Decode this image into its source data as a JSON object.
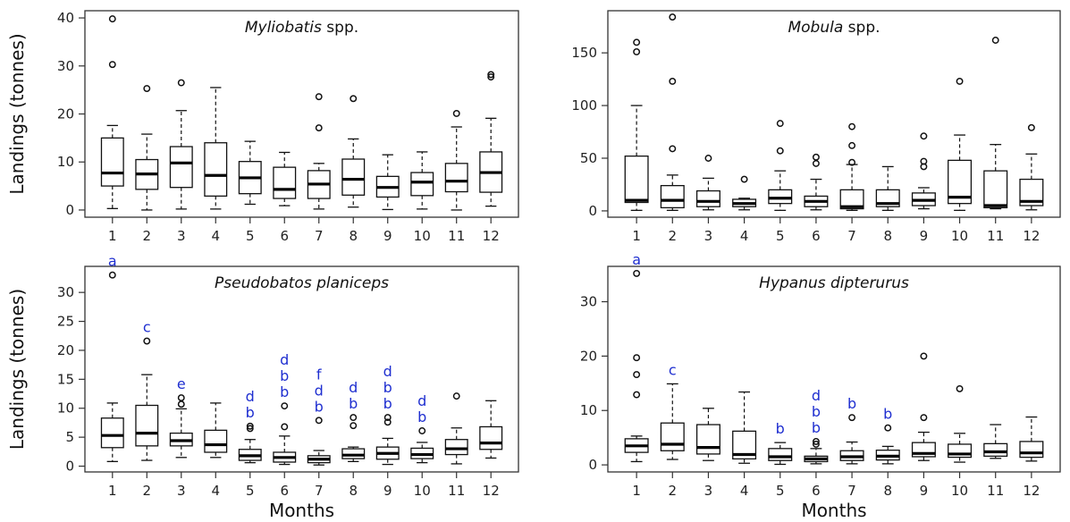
{
  "chart_data": [
    {
      "type": "boxplot",
      "title_italic": "Myliobatis",
      "title_suffix": " spp.",
      "ylabel": "Landings (tonnes)",
      "xlabel": "",
      "ylim": [
        -1.5,
        41.5
      ],
      "yticks": [
        0,
        10,
        20,
        30,
        40
      ],
      "categories": [
        "1",
        "2",
        "3",
        "4",
        "5",
        "6",
        "7",
        "8",
        "9",
        "10",
        "11",
        "12"
      ],
      "boxes": [
        {
          "min": 0.3,
          "q1": 5.0,
          "median": 7.7,
          "q3": 15.0,
          "max": 17.6,
          "outliers": [
            30.3,
            39.8
          ]
        },
        {
          "min": 0.0,
          "q1": 4.3,
          "median": 7.5,
          "q3": 10.5,
          "max": 15.8,
          "outliers": [
            25.3
          ]
        },
        {
          "min": 0.2,
          "q1": 4.7,
          "median": 9.8,
          "q3": 13.2,
          "max": 20.7,
          "outliers": [
            26.5
          ]
        },
        {
          "min": 0.2,
          "q1": 2.9,
          "median": 7.2,
          "q3": 14.0,
          "max": 25.5,
          "outliers": []
        },
        {
          "min": 1.2,
          "q1": 3.4,
          "median": 6.7,
          "q3": 10.1,
          "max": 14.3,
          "outliers": []
        },
        {
          "min": 0.9,
          "q1": 2.4,
          "median": 4.3,
          "q3": 8.9,
          "max": 12.0,
          "outliers": []
        },
        {
          "min": 0.2,
          "q1": 2.4,
          "median": 5.4,
          "q3": 8.2,
          "max": 9.7,
          "outliers": [
            17.1,
            23.6
          ]
        },
        {
          "min": 0.6,
          "q1": 3.1,
          "median": 6.4,
          "q3": 10.6,
          "max": 14.8,
          "outliers": [
            23.2
          ]
        },
        {
          "min": 0.1,
          "q1": 2.7,
          "median": 4.7,
          "q3": 7.0,
          "max": 11.5,
          "outliers": []
        },
        {
          "min": 0.2,
          "q1": 3.0,
          "median": 5.8,
          "q3": 7.8,
          "max": 12.1,
          "outliers": []
        },
        {
          "min": 0.0,
          "q1": 3.8,
          "median": 6.0,
          "q3": 9.7,
          "max": 17.3,
          "outliers": [
            20.1
          ]
        },
        {
          "min": 0.8,
          "q1": 3.7,
          "median": 7.8,
          "q3": 12.1,
          "max": 19.1,
          "outliers": [
            27.7,
            28.2
          ]
        }
      ],
      "letters": []
    },
    {
      "type": "boxplot",
      "title_italic": "Mobula",
      "title_suffix": " spp.",
      "ylabel": "",
      "xlabel": "",
      "ylim": [
        -6,
        190
      ],
      "yticks": [
        0,
        50,
        100,
        150
      ],
      "categories": [
        "1",
        "2",
        "3",
        "4",
        "5",
        "6",
        "7",
        "8",
        "9",
        "10",
        "11",
        "12"
      ],
      "boxes": [
        {
          "min": 0.5,
          "q1": 8,
          "median": 10,
          "q3": 52,
          "max": 100,
          "outliers": [
            151,
            160
          ]
        },
        {
          "min": 0.5,
          "q1": 3,
          "median": 10,
          "q3": 24,
          "max": 34,
          "outliers": [
            59,
            123,
            184
          ]
        },
        {
          "min": 1,
          "q1": 4,
          "median": 9,
          "q3": 19,
          "max": 31,
          "outliers": [
            50
          ]
        },
        {
          "min": 1,
          "q1": 4,
          "median": 7,
          "q3": 11,
          "max": 12,
          "outliers": [
            30
          ]
        },
        {
          "min": 0.5,
          "q1": 7,
          "median": 12,
          "q3": 20,
          "max": 38,
          "outliers": [
            57,
            83
          ]
        },
        {
          "min": 1,
          "q1": 4,
          "median": 9,
          "q3": 14,
          "max": 30,
          "outliers": [
            45,
            51
          ]
        },
        {
          "min": 0.5,
          "q1": 2,
          "median": 4,
          "q3": 20,
          "max": 44,
          "outliers": [
            46,
            62,
            80
          ]
        },
        {
          "min": 0.5,
          "q1": 4,
          "median": 7,
          "q3": 20,
          "max": 42,
          "outliers": []
        },
        {
          "min": 2,
          "q1": 5,
          "median": 10,
          "q3": 17,
          "max": 22,
          "outliers": [
            42,
            47,
            71
          ]
        },
        {
          "min": 0.5,
          "q1": 7,
          "median": 13,
          "q3": 48,
          "max": 72,
          "outliers": [
            123
          ]
        },
        {
          "min": 2,
          "q1": 3,
          "median": 5,
          "q3": 38,
          "max": 63,
          "outliers": [
            162
          ]
        },
        {
          "min": 1,
          "q1": 5,
          "median": 9,
          "q3": 30,
          "max": 54,
          "outliers": [
            79
          ]
        }
      ],
      "letters": []
    },
    {
      "type": "boxplot",
      "title_italic": "Pseudobatos planiceps",
      "title_suffix": "",
      "ylabel": "Landings (tonnes)",
      "xlabel": "Months",
      "ylim": [
        -1,
        34.5
      ],
      "yticks": [
        0,
        5,
        10,
        15,
        20,
        25,
        30
      ],
      "categories": [
        "1",
        "2",
        "3",
        "4",
        "5",
        "6",
        "7",
        "8",
        "9",
        "10",
        "11",
        "12"
      ],
      "boxes": [
        {
          "min": 0.8,
          "q1": 3.2,
          "median": 5.3,
          "q3": 8.3,
          "max": 10.9,
          "outliers": [
            33.0
          ]
        },
        {
          "min": 1.0,
          "q1": 3.5,
          "median": 5.7,
          "q3": 10.5,
          "max": 15.8,
          "outliers": [
            21.6
          ]
        },
        {
          "min": 1.5,
          "q1": 3.5,
          "median": 4.4,
          "q3": 5.7,
          "max": 9.9,
          "outliers": [
            10.7,
            11.8
          ]
        },
        {
          "min": 1.5,
          "q1": 2.4,
          "median": 3.7,
          "q3": 6.2,
          "max": 10.9,
          "outliers": []
        },
        {
          "min": 0.6,
          "q1": 1.0,
          "median": 1.8,
          "q3": 2.9,
          "max": 4.6,
          "outliers": [
            6.5,
            6.9
          ]
        },
        {
          "min": 0.3,
          "q1": 0.7,
          "median": 1.5,
          "q3": 2.4,
          "max": 5.2,
          "outliers": [
            6.8,
            10.4
          ]
        },
        {
          "min": 0.2,
          "q1": 0.6,
          "median": 1.2,
          "q3": 1.8,
          "max": 2.7,
          "outliers": [
            7.9
          ]
        },
        {
          "min": 0.8,
          "q1": 1.3,
          "median": 1.9,
          "q3": 3.0,
          "max": 3.3,
          "outliers": [
            7.0,
            8.4
          ]
        },
        {
          "min": 0.3,
          "q1": 1.2,
          "median": 2.2,
          "q3": 3.3,
          "max": 4.8,
          "outliers": [
            7.6,
            8.4
          ]
        },
        {
          "min": 0.6,
          "q1": 1.3,
          "median": 2.0,
          "q3": 3.1,
          "max": 4.1,
          "outliers": [
            6.1
          ]
        },
        {
          "min": 0.4,
          "q1": 2.0,
          "median": 3.0,
          "q3": 4.6,
          "max": 6.6,
          "outliers": [
            12.1
          ]
        },
        {
          "min": 1.4,
          "q1": 2.9,
          "median": 4.0,
          "q3": 6.8,
          "max": 11.3,
          "outliers": []
        }
      ],
      "letters": [
        {
          "month": 1,
          "text": [
            "a"
          ]
        },
        {
          "month": 2,
          "text": [
            "c"
          ]
        },
        {
          "month": 3,
          "text": [
            "e"
          ]
        },
        {
          "month": 5,
          "text": [
            "d",
            "b"
          ]
        },
        {
          "month": 6,
          "text": [
            "d",
            "b",
            "b"
          ]
        },
        {
          "month": 7,
          "text": [
            "f",
            "d",
            "b"
          ]
        },
        {
          "month": 8,
          "text": [
            "d",
            "b"
          ]
        },
        {
          "month": 9,
          "text": [
            "d",
            "b",
            "b"
          ]
        },
        {
          "month": 10,
          "text": [
            "d",
            "b"
          ]
        }
      ]
    },
    {
      "type": "boxplot",
      "title_italic": "Hypanus dipterurus",
      "title_suffix": "",
      "ylabel": "",
      "xlabel": "Months",
      "ylim": [
        -1.3,
        36.5
      ],
      "yticks": [
        0,
        10,
        20,
        30
      ],
      "categories": [
        "1",
        "2",
        "3",
        "4",
        "5",
        "6",
        "7",
        "8",
        "9",
        "10",
        "11",
        "12"
      ],
      "boxes": [
        {
          "min": 0.6,
          "q1": 2.3,
          "median": 3.5,
          "q3": 4.8,
          "max": 5.3,
          "outliers": [
            12.9,
            16.6,
            19.7,
            35.2
          ]
        },
        {
          "min": 1.0,
          "q1": 2.6,
          "median": 3.8,
          "q3": 7.7,
          "max": 14.9,
          "outliers": []
        },
        {
          "min": 0.8,
          "q1": 2.0,
          "median": 3.2,
          "q3": 7.4,
          "max": 10.4,
          "outliers": []
        },
        {
          "min": 0.3,
          "q1": 1.1,
          "median": 1.9,
          "q3": 6.2,
          "max": 13.4,
          "outliers": []
        },
        {
          "min": 0.1,
          "q1": 0.8,
          "median": 1.5,
          "q3": 3.0,
          "max": 4.1,
          "outliers": []
        },
        {
          "min": 0.2,
          "q1": 0.6,
          "median": 1.1,
          "q3": 1.6,
          "max": 3.0,
          "outliers": [
            3.8,
            4.3
          ]
        },
        {
          "min": 0.2,
          "q1": 0.8,
          "median": 1.5,
          "q3": 2.6,
          "max": 4.2,
          "outliers": [
            8.7
          ]
        },
        {
          "min": 0.2,
          "q1": 0.9,
          "median": 1.6,
          "q3": 2.7,
          "max": 3.4,
          "outliers": [
            6.8
          ]
        },
        {
          "min": 0.8,
          "q1": 1.5,
          "median": 2.1,
          "q3": 4.1,
          "max": 6.0,
          "outliers": [
            8.7,
            20.0
          ]
        },
        {
          "min": 0.5,
          "q1": 1.4,
          "median": 2.0,
          "q3": 3.8,
          "max": 5.8,
          "outliers": [
            14.0
          ]
        },
        {
          "min": 1.2,
          "q1": 1.6,
          "median": 2.4,
          "q3": 3.9,
          "max": 7.4,
          "outliers": []
        },
        {
          "min": 0.7,
          "q1": 1.4,
          "median": 2.2,
          "q3": 4.3,
          "max": 8.8,
          "outliers": []
        }
      ],
      "letters": [
        {
          "month": 1,
          "text": [
            "a"
          ]
        },
        {
          "month": 2,
          "text": [
            "c"
          ]
        },
        {
          "month": 5,
          "text": [
            "b"
          ]
        },
        {
          "month": 6,
          "text": [
            "d",
            "b",
            "b"
          ]
        },
        {
          "month": 7,
          "text": [
            "b"
          ]
        },
        {
          "month": 8,
          "text": [
            "b"
          ]
        }
      ]
    }
  ],
  "colors": {
    "letters": "#1f2fd0",
    "box_stroke": "#111111"
  }
}
